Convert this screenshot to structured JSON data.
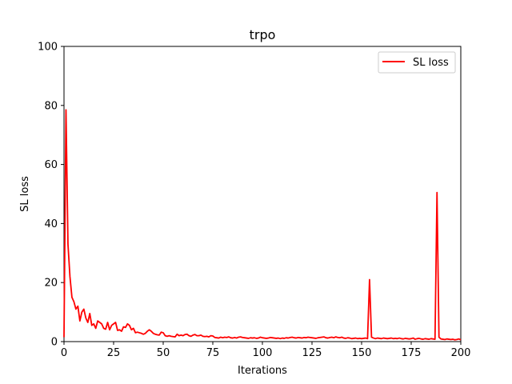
{
  "chart_data": {
    "type": "line",
    "title": "trpo",
    "xlabel": "Iterations",
    "ylabel": "SL loss",
    "xlim": [
      0,
      200
    ],
    "ylim": [
      0,
      100
    ],
    "xticks": [
      0,
      25,
      50,
      75,
      100,
      125,
      150,
      175,
      200
    ],
    "yticks": [
      0,
      20,
      40,
      60,
      80,
      100
    ],
    "grid": false,
    "legend_position": "top-right",
    "series": [
      {
        "name": "SL loss",
        "color": "#ff0000",
        "x": [
          0,
          1,
          2,
          3,
          4,
          5,
          6,
          7,
          8,
          9,
          10,
          11,
          12,
          13,
          14,
          15,
          16,
          17,
          18,
          19,
          20,
          21,
          22,
          23,
          24,
          25,
          26,
          27,
          28,
          29,
          30,
          31,
          32,
          33,
          34,
          35,
          36,
          37,
          38,
          39,
          40,
          41,
          42,
          43,
          44,
          45,
          46,
          47,
          48,
          49,
          50,
          51,
          52,
          53,
          54,
          55,
          56,
          57,
          58,
          59,
          60,
          61,
          62,
          63,
          64,
          65,
          66,
          67,
          68,
          69,
          70,
          71,
          72,
          73,
          74,
          75,
          76,
          77,
          78,
          79,
          80,
          81,
          82,
          83,
          84,
          85,
          86,
          87,
          88,
          89,
          90,
          91,
          92,
          93,
          94,
          95,
          96,
          97,
          98,
          99,
          100,
          101,
          102,
          103,
          104,
          105,
          106,
          107,
          108,
          109,
          110,
          111,
          112,
          113,
          114,
          115,
          116,
          117,
          118,
          119,
          120,
          121,
          122,
          123,
          124,
          125,
          126,
          127,
          128,
          129,
          130,
          131,
          132,
          133,
          134,
          135,
          136,
          137,
          138,
          139,
          140,
          141,
          142,
          143,
          144,
          145,
          146,
          147,
          148,
          149,
          150,
          151,
          152,
          153,
          154,
          155,
          156,
          157,
          158,
          159,
          160,
          161,
          162,
          163,
          164,
          165,
          166,
          167,
          168,
          169,
          170,
          171,
          172,
          173,
          174,
          175,
          176,
          177,
          178,
          179,
          180,
          181,
          182,
          183,
          184,
          185,
          186,
          187,
          188,
          189,
          190,
          191,
          192,
          193,
          194,
          195,
          196,
          197,
          198,
          199,
          200
        ],
        "y": [
          1.5,
          78.5,
          33,
          22,
          15,
          13.5,
          11,
          12,
          7,
          10,
          11,
          8,
          6.5,
          9.5,
          5.5,
          6,
          4.5,
          7,
          6.5,
          6,
          4.5,
          4.2,
          6.5,
          4,
          5.5,
          6,
          6.5,
          3.8,
          4,
          3.5,
          5,
          4.8,
          6,
          5.5,
          4,
          4.5,
          3,
          3.2,
          3,
          2.8,
          2.5,
          2.8,
          3.5,
          4,
          3.5,
          2.8,
          2.5,
          2.3,
          2.2,
          3.2,
          3.0,
          2.0,
          1.8,
          2.0,
          1.8,
          1.7,
          1.6,
          2.5,
          2.0,
          2.2,
          2.0,
          2.4,
          2.5,
          2.0,
          1.8,
          2.2,
          2.4,
          2.0,
          2.0,
          2.2,
          1.8,
          1.7,
          1.8,
          1.6,
          2.0,
          1.9,
          1.4,
          1.3,
          1.2,
          1.5,
          1.3,
          1.5,
          1.4,
          1.6,
          1.3,
          1.2,
          1.4,
          1.2,
          1.5,
          1.6,
          1.4,
          1.3,
          1.2,
          1.1,
          1.3,
          1.2,
          1.3,
          1.1,
          1.2,
          1.5,
          1.3,
          1.2,
          1.1,
          1.2,
          1.4,
          1.3,
          1.2,
          1.1,
          1.2,
          1.0,
          1.2,
          1.1,
          1.3,
          1.2,
          1.4,
          1.5,
          1.3,
          1.2,
          1.4,
          1.3,
          1.2,
          1.4,
          1.3,
          1.5,
          1.4,
          1.3,
          1.2,
          1.1,
          1.3,
          1.4,
          1.5,
          1.6,
          1.3,
          1.2,
          1.4,
          1.5,
          1.3,
          1.6,
          1.4,
          1.3,
          1.5,
          1.2,
          1.1,
          1.3,
          1.2,
          1.0,
          1.1,
          1.2,
          1.0,
          1.1,
          1.0,
          1.1,
          1.2,
          1.0,
          21.0,
          1.5,
          1.2,
          1.0,
          1.2,
          1.1,
          1.0,
          1.2,
          1.1,
          1.0,
          1.1,
          1.2,
          1.0,
          1.1,
          1.0,
          1.2,
          1.0,
          0.9,
          1.1,
          1.0,
          0.9,
          1.0,
          1.2,
          0.8,
          1.0,
          1.1,
          0.9,
          0.8,
          1.0,
          0.9,
          0.8,
          1.0,
          0.9,
          0.8,
          50.5,
          1.5,
          0.9,
          0.8,
          0.7,
          0.9,
          0.8,
          0.7,
          0.8,
          0.6,
          0.7,
          0.9,
          0.6
        ]
      }
    ]
  }
}
